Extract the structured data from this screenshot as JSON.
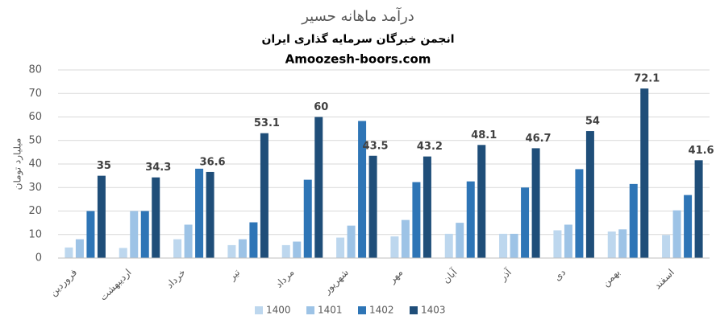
{
  "chart_data": {
    "type": "bar",
    "title": "درآمد ماهانه حسیر",
    "subtitle": "انجمن خبرگان سرمایه گذاری ایران",
    "source": "Amoozesh-boors.com",
    "y_label": "میلیارد تومان",
    "categories": [
      "فروردین",
      "اردیبهشت",
      "خرداد",
      "تیر",
      "مرداد",
      "شهریور",
      "مهر",
      "آبان",
      "آذر",
      "دی",
      "بهمن",
      "اسفند"
    ],
    "series": [
      {
        "name": "1400",
        "color": "#bdd7ee",
        "values": [
          4.5,
          4.3,
          8,
          5.5,
          5.5,
          8.7,
          9.2,
          10.3,
          10.3,
          11.8,
          11.3,
          9.8
        ]
      },
      {
        "name": "1401",
        "color": "#9dc3e6",
        "values": [
          8,
          20,
          14.2,
          8,
          7,
          13.8,
          16.2,
          15,
          10.3,
          14.2,
          12.2,
          20.3
        ]
      },
      {
        "name": "1402",
        "color": "#2e75b6",
        "values": [
          20,
          20,
          38,
          15.2,
          33.3,
          58.3,
          32.3,
          32.6,
          30,
          37.8,
          31.5,
          26.8
        ]
      },
      {
        "name": "1403",
        "color": "#1f4e79",
        "values": [
          35,
          34.3,
          36.6,
          53.1,
          60,
          43.5,
          43.2,
          48.1,
          46.7,
          54,
          72.1,
          41.6
        ],
        "data_labels": true
      }
    ],
    "ylim": [
      0,
      80
    ],
    "yticks": [
      0,
      10,
      20,
      30,
      40,
      50,
      60,
      70,
      80
    ],
    "grid": true,
    "legend": "bottom"
  }
}
